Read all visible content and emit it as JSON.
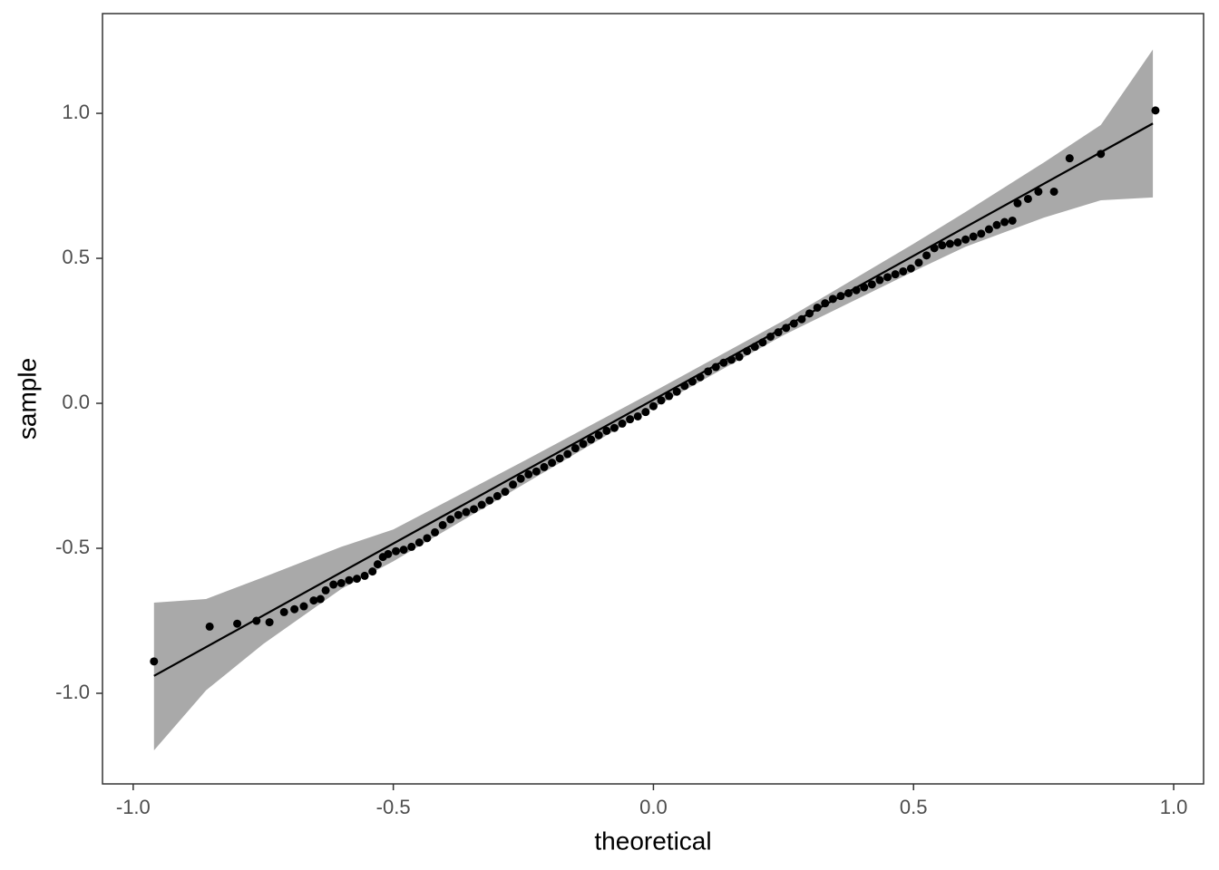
{
  "chart_data": {
    "type": "qq",
    "x_label": "theoretical",
    "y_label": "sample",
    "xlim": [
      -1.059,
      1.0575
    ],
    "ylim": [
      -1.3125,
      1.344
    ],
    "xticks": [
      {
        "value": -1,
        "label": "-1.0"
      },
      -0.5,
      {
        "value": 0,
        "label": "0.0"
      },
      0.5,
      {
        "value": 1,
        "label": "1.0"
      }
    ],
    "yticks": [
      {
        "value": -1,
        "label": "-1.0"
      },
      -0.5,
      {
        "value": 0,
        "label": "0.0"
      },
      0.5,
      {
        "value": 1,
        "label": "1.0"
      }
    ],
    "point_color": "#000000",
    "line_color": "#000000",
    "band_color": "#a9a9a9",
    "band": {
      "x": [
        -0.96,
        -0.86,
        -0.75,
        -0.6,
        -0.5,
        -0.25,
        0,
        0.25,
        0.5,
        0.6,
        0.75,
        0.86,
        0.96
      ],
      "upper": [
        -0.6875,
        -0.675,
        -0.6,
        -0.495,
        -0.435,
        -0.2,
        0.04,
        0.285,
        0.55,
        0.66,
        0.83,
        0.96,
        1.22
      ],
      "lower": [
        -1.197,
        -0.99,
        -0.83,
        -0.64,
        -0.545,
        -0.28,
        -0.015,
        0.235,
        0.455,
        0.54,
        0.64,
        0.7,
        0.71
      ]
    },
    "line": {
      "x": [
        -0.96,
        0.96
      ],
      "y": [
        -0.94,
        0.965
      ]
    },
    "points": {
      "x": [
        -0.96,
        -0.853,
        -0.8,
        -0.763,
        -0.738,
        -0.71,
        -0.69,
        -0.672,
        -0.653,
        -0.64,
        -0.63,
        -0.615,
        -0.6,
        -0.585,
        -0.57,
        -0.555,
        -0.54,
        -0.53,
        -0.52,
        -0.51,
        -0.495,
        -0.48,
        -0.465,
        -0.45,
        -0.435,
        -0.42,
        -0.405,
        -0.39,
        -0.375,
        -0.36,
        -0.345,
        -0.33,
        -0.315,
        -0.3,
        -0.285,
        -0.27,
        -0.255,
        -0.24,
        -0.225,
        -0.21,
        -0.195,
        -0.18,
        -0.165,
        -0.15,
        -0.135,
        -0.12,
        -0.105,
        -0.09,
        -0.075,
        -0.06,
        -0.045,
        -0.03,
        -0.015,
        0,
        0.015,
        0.03,
        0.045,
        0.06,
        0.075,
        0.09,
        0.105,
        0.12,
        0.135,
        0.15,
        0.165,
        0.18,
        0.195,
        0.21,
        0.225,
        0.24,
        0.255,
        0.27,
        0.285,
        0.3,
        0.315,
        0.33,
        0.345,
        0.36,
        0.375,
        0.39,
        0.405,
        0.42,
        0.435,
        0.45,
        0.465,
        0.48,
        0.495,
        0.51,
        0.525,
        0.54,
        0.555,
        0.57,
        0.585,
        0.6,
        0.615,
        0.63,
        0.645,
        0.66,
        0.675,
        0.69,
        0.7,
        0.72,
        0.74,
        0.77,
        0.8,
        0.86,
        0.965
      ],
      "y": [
        -0.89,
        -0.77,
        -0.76,
        -0.75,
        -0.755,
        -0.72,
        -0.71,
        -0.7,
        -0.68,
        -0.675,
        -0.645,
        -0.625,
        -0.62,
        -0.61,
        -0.605,
        -0.595,
        -0.58,
        -0.555,
        -0.53,
        -0.52,
        -0.51,
        -0.505,
        -0.495,
        -0.48,
        -0.465,
        -0.445,
        -0.42,
        -0.4,
        -0.385,
        -0.375,
        -0.365,
        -0.35,
        -0.335,
        -0.32,
        -0.305,
        -0.28,
        -0.26,
        -0.245,
        -0.235,
        -0.22,
        -0.205,
        -0.19,
        -0.175,
        -0.155,
        -0.14,
        -0.125,
        -0.11,
        -0.095,
        -0.085,
        -0.07,
        -0.055,
        -0.045,
        -0.03,
        -0.01,
        0.01,
        0.025,
        0.04,
        0.06,
        0.075,
        0.09,
        0.11,
        0.125,
        0.14,
        0.15,
        0.16,
        0.18,
        0.195,
        0.21,
        0.23,
        0.245,
        0.26,
        0.275,
        0.29,
        0.31,
        0.33,
        0.345,
        0.36,
        0.37,
        0.38,
        0.39,
        0.4,
        0.41,
        0.425,
        0.435,
        0.445,
        0.455,
        0.465,
        0.485,
        0.51,
        0.535,
        0.545,
        0.55,
        0.555,
        0.565,
        0.575,
        0.585,
        0.6,
        0.615,
        0.625,
        0.63,
        0.69,
        0.705,
        0.73,
        0.73,
        0.845,
        0.86,
        1.01
      ]
    }
  }
}
